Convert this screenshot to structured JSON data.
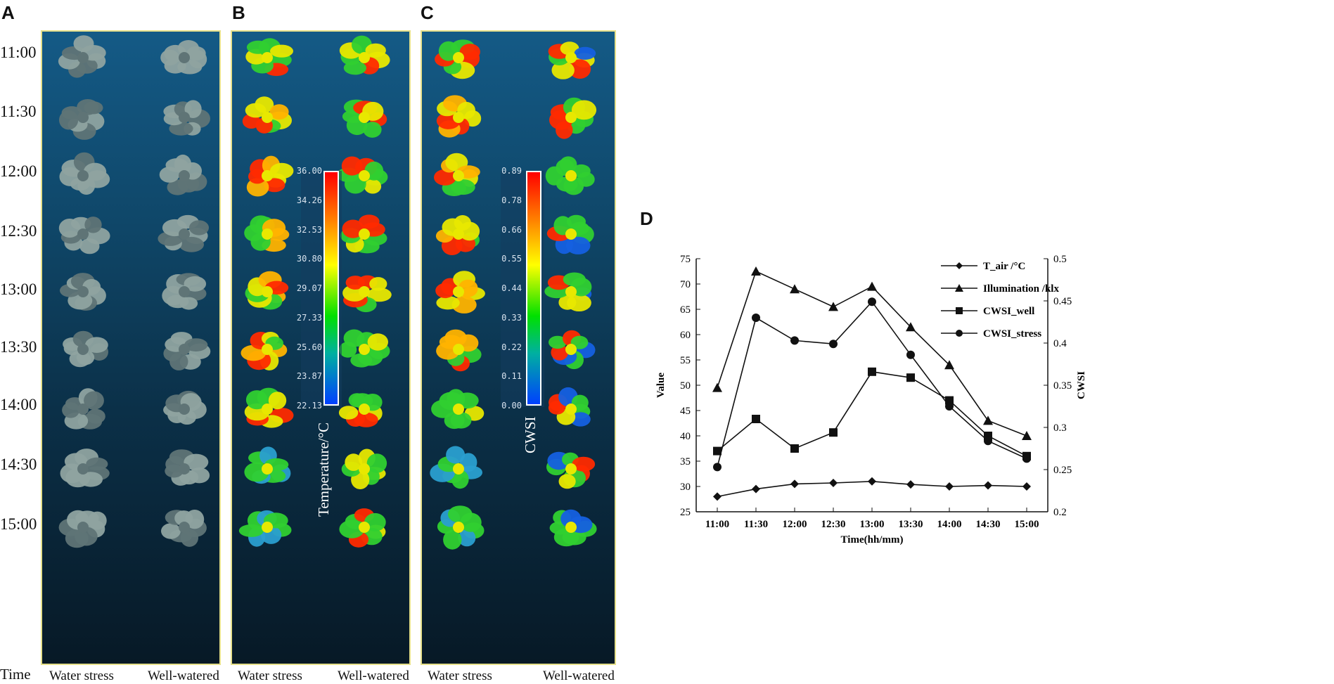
{
  "panel_labels": {
    "a": "A",
    "b": "B",
    "c": "C",
    "d": "D"
  },
  "times": [
    "11:00",
    "11:30",
    "12:00",
    "12:30",
    "13:00",
    "13:30",
    "14:00",
    "14:30",
    "15:00"
  ],
  "time_axis_label": "Time",
  "column_labels": {
    "a_left": "Water stress",
    "a_right": "Well-watered",
    "b_left": "Water stress",
    "b_right": "Well-watered",
    "c_left": "Water stress",
    "c_right": "Well-watered"
  },
  "temperature_bar": {
    "title": "Temperature/°C",
    "ticks": [
      "36.00",
      "34.26",
      "32.53",
      "30.80",
      "29.07",
      "27.33",
      "25.60",
      "23.87",
      "22.13"
    ]
  },
  "cwsi_bar": {
    "title": "CWSI",
    "ticks": [
      "0.89",
      "0.78",
      "0.66",
      "0.55",
      "0.44",
      "0.33",
      "0.22",
      "0.11",
      "0.00"
    ]
  },
  "colors": {
    "hot": "#ff2a00",
    "warm": "#ffb300",
    "mid": "#e8e800",
    "cool": "#30d030",
    "cold": "#1560e0",
    "rgb_leaf": "#5f7476",
    "rgb_leaf_light": "#8fa3a0"
  },
  "chart_data": {
    "type": "line",
    "x": [
      "11:00",
      "11:30",
      "12:00",
      "12:30",
      "13:00",
      "13:30",
      "14:00",
      "14:30",
      "15:00"
    ],
    "xlabel": "Time(hh/mm)",
    "ylabel": "Value",
    "y2label": "CWSI",
    "ylim": [
      25,
      75
    ],
    "yticks": [
      "25",
      "30",
      "35",
      "40",
      "45",
      "50",
      "55",
      "60",
      "65",
      "70",
      "75"
    ],
    "y2lim": [
      0.2,
      0.5
    ],
    "y2ticks": [
      "0.2",
      "0.25",
      "0.3",
      "0.35",
      "0.4",
      "0.45",
      "0.5"
    ],
    "legend_position": "top-right",
    "series": [
      {
        "name": "T_air /°C",
        "marker": "diamond",
        "axis": "left",
        "values": [
          28.0,
          29.5,
          30.5,
          30.7,
          31.0,
          30.4,
          30.0,
          30.2,
          30.0
        ]
      },
      {
        "name": "Illumination /klx",
        "marker": "triangle",
        "axis": "left",
        "values": [
          49.5,
          72.5,
          69.0,
          65.5,
          69.5,
          61.5,
          54.0,
          43.0,
          40.0
        ]
      },
      {
        "name": "CWSI_well",
        "marker": "square",
        "axis": "right",
        "values": [
          0.272,
          0.31,
          0.275,
          0.294,
          0.366,
          0.359,
          0.332,
          0.29,
          0.266
        ]
      },
      {
        "name": "CWSI_stress",
        "marker": "circle",
        "axis": "right",
        "values": [
          0.253,
          0.43,
          0.403,
          0.399,
          0.449,
          0.386,
          0.325,
          0.284,
          0.263
        ]
      }
    ]
  }
}
